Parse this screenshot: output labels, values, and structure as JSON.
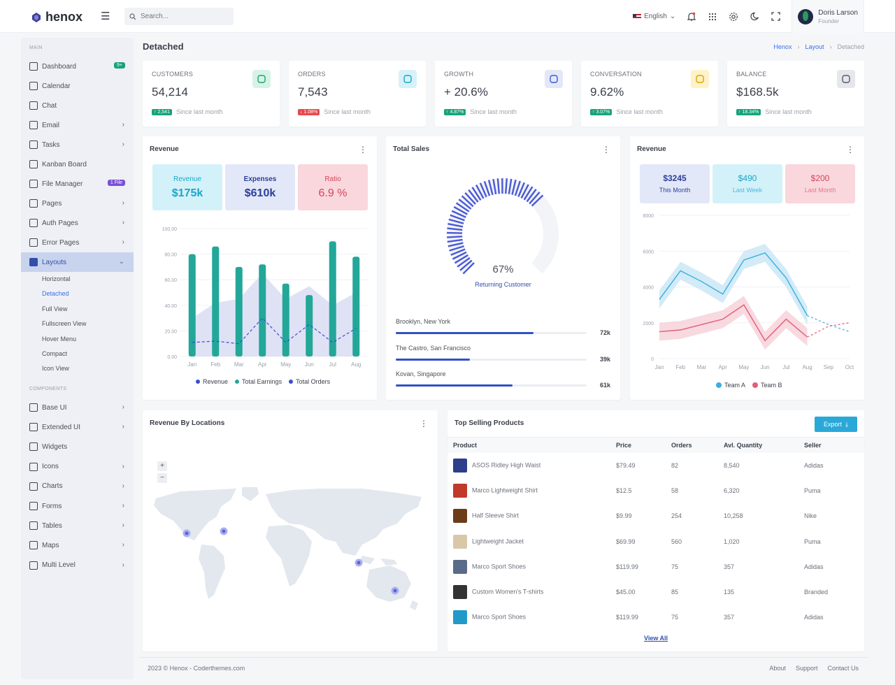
{
  "app": {
    "brand": "henox"
  },
  "search": {
    "placeholder": "Search..."
  },
  "header": {
    "language": "English",
    "user_name": "Doris Larson",
    "user_role": "Founder"
  },
  "sidebar": {
    "section_main": "MAIN",
    "section_components": "COMPONENTS",
    "items": [
      {
        "label": "Dashboard",
        "badge": "9+",
        "badge_color": "#16a37a"
      },
      {
        "label": "Calendar"
      },
      {
        "label": "Chat"
      },
      {
        "label": "Email"
      },
      {
        "label": "Tasks"
      },
      {
        "label": "Kanban Board"
      },
      {
        "label": "File Manager",
        "badge": "1 File",
        "badge_color": "#7b4fd6"
      },
      {
        "label": "Pages"
      },
      {
        "label": "Auth Pages"
      },
      {
        "label": "Error Pages"
      },
      {
        "label": "Layouts"
      }
    ],
    "sub_items": [
      "Horizontal",
      "Detached",
      "Full View",
      "Fullscreen View",
      "Hover Menu",
      "Compact",
      "Icon View"
    ],
    "comp_items": [
      "Base UI",
      "Extended UI",
      "Widgets",
      "Icons",
      "Charts",
      "Forms",
      "Tables",
      "Maps",
      "Multi Level"
    ]
  },
  "page": {
    "title": "Detached",
    "breadcrumb": [
      "Henox",
      "Layout",
      "Detached"
    ]
  },
  "stats": [
    {
      "label": "CUSTOMERS",
      "value": "54,214",
      "change": "2,541",
      "dir": "up",
      "note": "Since last month",
      "icon": "users-icon",
      "color": "#16a37a",
      "bg": "#d7f3e6"
    },
    {
      "label": "ORDERS",
      "value": "7,543",
      "change": "1.08%",
      "dir": "down",
      "note": "Since last month",
      "icon": "basket-icon",
      "color": "#1aa5c9",
      "bg": "#d6f1f9"
    },
    {
      "label": "GROWTH",
      "value": "+ 20.6%",
      "change": "4.87%",
      "dir": "up",
      "note": "Since last month",
      "icon": "refresh-icon",
      "color": "#3b5bd6",
      "bg": "#e3e8f8"
    },
    {
      "label": "CONVERSATION",
      "value": "9.62%",
      "change": "3.07%",
      "dir": "up",
      "note": "Since last month",
      "icon": "activity-icon",
      "color": "#e0a200",
      "bg": "#fdf2c8"
    },
    {
      "label": "BALANCE",
      "value": "$168.5k",
      "change": "18.34%",
      "dir": "up",
      "note": "Since last month",
      "icon": "wallet-icon",
      "color": "#555b66",
      "bg": "#e5e7ea"
    }
  ],
  "revenue_card": {
    "title": "Revenue",
    "tiles": [
      {
        "label": "Revenue",
        "value": "$175k"
      },
      {
        "label": "Expenses",
        "value": "$610k"
      },
      {
        "label": "Ratio",
        "value": "6.9 %"
      }
    ]
  },
  "sales_card": {
    "title": "Total Sales",
    "percent": "67%",
    "subtitle": "Returning Customer",
    "locations": [
      {
        "name": "Brooklyn, New York",
        "value": "72k",
        "fraction": 0.72
      },
      {
        "name": "The Castro, San Francisco",
        "value": "39k",
        "fraction": 0.39
      },
      {
        "name": "Kovan, Singapore",
        "value": "61k",
        "fraction": 0.61
      }
    ]
  },
  "revenue2_card": {
    "title": "Revenue",
    "tiles": [
      {
        "value": "$3245",
        "label": "This Month"
      },
      {
        "value": "$490",
        "label": "Last Week"
      },
      {
        "value": "$200",
        "label": "Last Month"
      }
    ]
  },
  "map_card": {
    "title": "Revenue By Locations",
    "zoom_in": "+",
    "zoom_out": "−"
  },
  "products": {
    "title": "Top Selling Products",
    "export_label": "Export",
    "headers": [
      "Product",
      "Price",
      "Orders",
      "Avl. Quantity",
      "Seller"
    ],
    "rows": [
      [
        "ASOS Ridley High Waist",
        "$79.49",
        "82",
        "8,540",
        "Adidas"
      ],
      [
        "Marco Lightweight Shirt",
        "$12.5",
        "58",
        "6,320",
        "Puma"
      ],
      [
        "Half Sleeve Shirt",
        "$9.99",
        "254",
        "10,258",
        "Nike"
      ],
      [
        "Lightweight Jacket",
        "$69.99",
        "560",
        "1,020",
        "Puma"
      ],
      [
        "Marco Sport Shoes",
        "$119.99",
        "75",
        "357",
        "Adidas"
      ],
      [
        "Custom Women's T-shirts",
        "$45.00",
        "85",
        "135",
        "Branded"
      ],
      [
        "Marco Sport Shoes",
        "$119.99",
        "75",
        "357",
        "Adidas"
      ]
    ],
    "view_all": "View All"
  },
  "footer": {
    "copyright": "2023 © Henox - Coderthemes.com",
    "links": [
      "About",
      "Support",
      "Contact Us"
    ]
  },
  "chart_data": [
    {
      "type": "bar",
      "title": "Revenue",
      "categories": [
        "Jan",
        "Feb",
        "Mar",
        "Apr",
        "May",
        "Jun",
        "Jul",
        "Aug"
      ],
      "ylim": [
        0,
        100
      ],
      "yticks": [
        "0.00",
        "20.00",
        "40.00",
        "60.00",
        "80.00",
        "100.00"
      ],
      "series": [
        {
          "name": "Revenue",
          "values": [
            11,
            12,
            10,
            30,
            11,
            25,
            11,
            22
          ]
        },
        {
          "name": "Total Earnings",
          "values": [
            80,
            86,
            70,
            72,
            57,
            48,
            90,
            78
          ]
        },
        {
          "name": "Total Orders",
          "values": [
            30,
            42,
            45,
            65,
            45,
            55,
            40,
            50
          ]
        }
      ]
    },
    {
      "type": "pie",
      "title": "Total Sales",
      "values": [
        67
      ]
    },
    {
      "type": "line",
      "title": "Revenue",
      "categories": [
        "Jan",
        "Feb",
        "Mar",
        "Apr",
        "May",
        "Jun",
        "Jul",
        "Aug",
        "Sep",
        "Oct"
      ],
      "ylim": [
        0,
        8000
      ],
      "yticks": [
        "0",
        "2000",
        "4000",
        "6000",
        "8000"
      ],
      "series": [
        {
          "name": "Team A",
          "values": [
            3300,
            4900,
            4300,
            3600,
            5500,
            5900,
            4500,
            2400,
            1900,
            1500
          ]
        },
        {
          "name": "Team B",
          "values": [
            1500,
            1600,
            1900,
            2200,
            3000,
            1000,
            2200,
            1200,
            1800,
            2000
          ]
        }
      ]
    }
  ]
}
